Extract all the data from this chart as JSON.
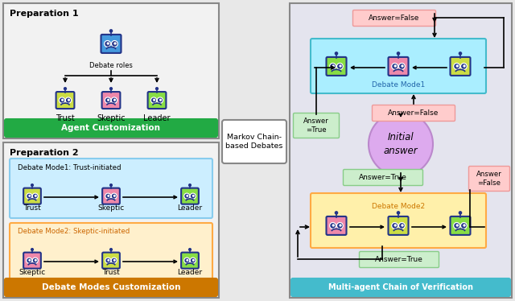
{
  "fig_width": 6.4,
  "fig_height": 3.74,
  "bg_color": "#e8e8e8",
  "trust_body": "#ccdd44",
  "skeptic_body": "#ee88aa",
  "leader_body": "#88dd44",
  "blue_robot_body": "#4499dd",
  "robot_frame": "#223388",
  "green_btn": "#22aa44",
  "orange_btn": "#cc7700",
  "pink_false_bg": "#ffcccc",
  "pink_false_edge": "#ee9999",
  "green_true_bg": "#cceecc",
  "green_true_edge": "#88cc88",
  "prep1_title": "Preparation 1",
  "prep2_title": "Preparation 2",
  "agent_cust": "Agent Customization",
  "debate_modes": "Debate Modes Customization",
  "markov_text": "Markov Chain-\nbased Debates",
  "mode1_label": "Debate Mode1: Trust-initiated",
  "mode2_label": "Debate Mode2: Skeptic-initiated",
  "debate_mode1": "Debate Mode1",
  "debate_mode2": "Debate Mode2",
  "initial_answer": "Initial\nanswer",
  "chain_label": "Multi-agent Chain of Verification",
  "trust": "Trust",
  "skeptic": "Skeptic",
  "leader": "Leader",
  "debate_roles": "Debate roles",
  "answer_false": "Answer=False",
  "answer_true": "Answer=True",
  "answer_false_split": "Answer\n=False",
  "answer_true_split": "Answer\n=True",
  "prep1_bg": "#f2f2f2",
  "prep2_bg": "#f2f2f2",
  "mode1_bg": "#cceeff",
  "mode1_edge": "#88ccee",
  "mode2_bg": "#fff0cc",
  "mode2_edge": "#ffaa44",
  "right_bg": "#e4e4ee",
  "dm1_bg": "#aaeeff",
  "dm1_edge": "#44bbcc",
  "dm2_bg": "#fff0aa",
  "dm2_edge": "#ffaa44",
  "chain_bar_color": "#44bbcc",
  "circle_bg": "#ddaaee",
  "circle_edge": "#bb88cc",
  "box_edge": "#888888",
  "markov_bg": "white"
}
